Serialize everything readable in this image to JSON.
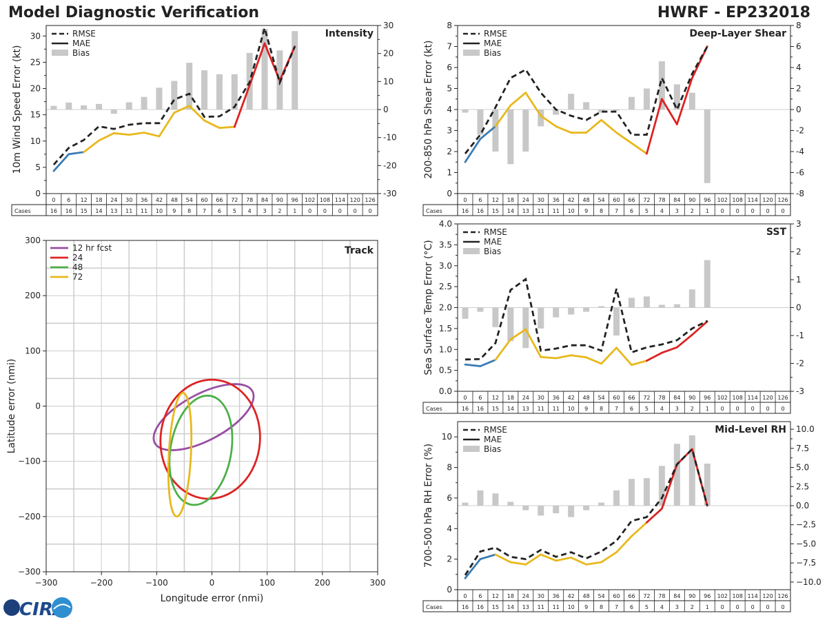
{
  "page": {
    "title_left": "Model Diagnostic Verification",
    "title_right": "HWRF - EP232018",
    "logo_text": "CIRA"
  },
  "colors": {
    "rmse": "#222222",
    "early": "#3a7db5",
    "mid": "#e8b81c",
    "late": "#dd2222",
    "bias": "#c8c8c8",
    "track_12": "#984ea3",
    "track_24": "#dd2222",
    "track_48": "#4daf4a",
    "track_72": "#e8b81c"
  },
  "shared": {
    "hours": [
      0,
      6,
      12,
      18,
      24,
      30,
      36,
      42,
      48,
      54,
      60,
      66,
      72,
      78,
      84,
      90,
      96,
      102,
      108,
      114,
      120,
      126
    ],
    "cases": [
      16,
      16,
      15,
      14,
      13,
      11,
      11,
      10,
      9,
      8,
      7,
      6,
      5,
      4,
      3,
      2,
      1,
      0,
      0,
      0,
      0,
      0
    ],
    "cases_label": "Cases",
    "legend": [
      "RMSE",
      "MAE",
      "Bias"
    ]
  },
  "chart_data": [
    {
      "id": "intensity",
      "type": "line",
      "title": "Intensity",
      "ylabel": "10m Wind Speed Error (kt)",
      "ylim": [
        0,
        32
      ],
      "yticks": [
        0,
        5,
        10,
        15,
        20,
        25,
        30
      ],
      "y2lim": [
        -30,
        30
      ],
      "y2ticks": [
        -30,
        -20,
        -10,
        0,
        10,
        20,
        30
      ],
      "x": [
        0,
        6,
        12,
        18,
        24,
        30,
        36,
        42,
        48,
        54,
        60,
        66,
        72,
        78,
        84,
        90,
        96
      ],
      "rmse": [
        5.5,
        8.7,
        10.2,
        12.8,
        12.3,
        13.1,
        13.4,
        13.4,
        17.9,
        19.0,
        14.6,
        14.7,
        16.5,
        21.2,
        31.5,
        21.1,
        28.0
      ],
      "mae": [
        4.3,
        7.5,
        7.9,
        10.1,
        11.5,
        11.2,
        11.6,
        10.9,
        15.4,
        16.7,
        13.9,
        12.5,
        12.7,
        20.6,
        28.6,
        21.5,
        28.0
      ],
      "bias": [
        1.3,
        2.5,
        1.5,
        2.0,
        -1.5,
        2.6,
        4.5,
        7.8,
        10.2,
        16.7,
        14.0,
        12.6,
        12.6,
        20.2,
        28.8,
        21.1,
        28.0
      ]
    },
    {
      "id": "shear",
      "type": "line",
      "title": "Deep-Layer Shear",
      "ylabel": "200-850 hPa Shear Error (kt)",
      "ylim": [
        0,
        8
      ],
      "yticks": [
        0,
        1,
        2,
        3,
        4,
        5,
        6,
        7,
        8
      ],
      "y2lim": [
        -8,
        8
      ],
      "y2ticks": [
        -8,
        -6,
        -4,
        -2,
        0,
        2,
        4,
        6,
        8
      ],
      "x": [
        0,
        6,
        12,
        18,
        24,
        30,
        36,
        42,
        48,
        54,
        60,
        66,
        72,
        78,
        84,
        90,
        96
      ],
      "rmse": [
        1.9,
        2.8,
        4.1,
        5.5,
        5.9,
        4.8,
        4.0,
        3.7,
        3.5,
        3.9,
        3.9,
        2.8,
        2.8,
        5.5,
        4.0,
        5.7,
        7.0
      ],
      "mae": [
        1.5,
        2.6,
        3.2,
        4.2,
        4.8,
        3.7,
        3.2,
        2.9,
        2.9,
        3.5,
        2.9,
        2.4,
        1.9,
        4.5,
        3.3,
        5.5,
        7.0
      ],
      "bias": [
        -0.3,
        -2.4,
        -4.0,
        -5.2,
        -4.0,
        -1.6,
        -0.5,
        1.5,
        0.7,
        -0.3,
        -0.1,
        1.2,
        2.0,
        4.6,
        2.4,
        1.6,
        -7.0
      ]
    },
    {
      "id": "sst",
      "type": "line",
      "title": "SST",
      "ylabel": "Sea Surface Temp Error (°C)",
      "ylim": [
        0,
        4
      ],
      "yticks": [
        0.0,
        0.5,
        1.0,
        1.5,
        2.0,
        2.5,
        3.0,
        3.5,
        4.0
      ],
      "ytick_labels": [
        "0.0",
        "0.5",
        "1.0",
        "1.5",
        "2.0",
        "2.5",
        "3.0",
        "3.5",
        "4.0"
      ],
      "y2lim": [
        -3,
        3
      ],
      "y2ticks": [
        -3,
        -2,
        -1,
        0,
        1,
        2,
        3
      ],
      "x": [
        0,
        6,
        12,
        18,
        24,
        30,
        36,
        42,
        48,
        54,
        60,
        66,
        72,
        78,
        84,
        90,
        96
      ],
      "rmse": [
        0.76,
        0.77,
        1.15,
        2.42,
        2.68,
        0.97,
        1.02,
        1.1,
        1.1,
        0.97,
        2.45,
        0.93,
        1.05,
        1.12,
        1.22,
        1.5,
        1.68
      ],
      "mae": [
        0.64,
        0.6,
        0.75,
        1.24,
        1.48,
        0.82,
        0.79,
        0.86,
        0.81,
        0.66,
        1.04,
        0.63,
        0.73,
        0.92,
        1.05,
        1.35,
        1.67
      ],
      "bias": [
        -0.4,
        -0.15,
        -0.7,
        -1.2,
        -1.45,
        -0.75,
        -0.35,
        -0.25,
        -0.15,
        0.05,
        -1.0,
        0.35,
        0.4,
        0.1,
        0.12,
        0.65,
        1.7
      ]
    },
    {
      "id": "rh",
      "type": "line",
      "title": "Mid-Level RH",
      "ylabel": "700-500 hPa RH Error (%)",
      "ylim": [
        0,
        11
      ],
      "yticks": [
        0,
        2,
        4,
        6,
        8,
        10
      ],
      "y2lim": [
        -11,
        11
      ],
      "y2ticks": [
        -10,
        -7.5,
        -5,
        -2.5,
        0,
        2.5,
        5,
        7.5,
        10
      ],
      "y2tick_labels": [
        "−10.0",
        "−7.5",
        "−5.0",
        "−2.5",
        "0.0",
        "2.5",
        "5.0",
        "7.5",
        "10.0"
      ],
      "x": [
        0,
        6,
        12,
        18,
        24,
        30,
        36,
        42,
        48,
        54,
        60,
        66,
        72,
        78,
        84,
        90,
        96
      ],
      "rmse": [
        0.95,
        2.5,
        2.75,
        2.15,
        2.0,
        2.6,
        2.15,
        2.45,
        2.05,
        2.5,
        3.2,
        4.5,
        4.75,
        6.0,
        8.2,
        9.2,
        5.5
      ],
      "mae": [
        0.75,
        2.0,
        2.3,
        1.8,
        1.65,
        2.3,
        1.9,
        2.1,
        1.65,
        1.8,
        2.45,
        3.5,
        4.4,
        5.3,
        8.2,
        9.2,
        5.5
      ],
      "bias": [
        0.4,
        2.0,
        1.6,
        0.5,
        -0.6,
        -1.3,
        -1.0,
        -1.5,
        -0.6,
        0.4,
        2.0,
        3.5,
        3.6,
        5.2,
        8.1,
        9.2,
        5.5
      ]
    },
    {
      "id": "track",
      "type": "scatter",
      "title": "Track",
      "xlabel": "Longitude error (nmi)",
      "ylabel": "Latitude error (nmi)",
      "xlim": [
        -300,
        300
      ],
      "ylim": [
        -300,
        300
      ],
      "xticks": [
        -300,
        -200,
        -100,
        0,
        100,
        200,
        300
      ],
      "yticks": [
        -300,
        -200,
        -100,
        0,
        100,
        200,
        300
      ],
      "tick_labels": [
        "−300",
        "−200",
        "−100",
        "0",
        "100",
        "200",
        "300"
      ],
      "ellipses": [
        {
          "label": "12 hr fcst",
          "cx": -15,
          "cy": -20,
          "rx": 100,
          "ry": 42,
          "angle_deg": -28
        },
        {
          "label": "24",
          "cx": -3,
          "cy": -60,
          "rx": 90,
          "ry": 108,
          "angle_deg": 5
        },
        {
          "label": "48",
          "cx": -20,
          "cy": -80,
          "rx": 55,
          "ry": 100,
          "angle_deg": 10
        },
        {
          "label": "72",
          "cx": -58,
          "cy": -88,
          "rx": 20,
          "ry": 112,
          "angle_deg": 3
        }
      ]
    }
  ]
}
